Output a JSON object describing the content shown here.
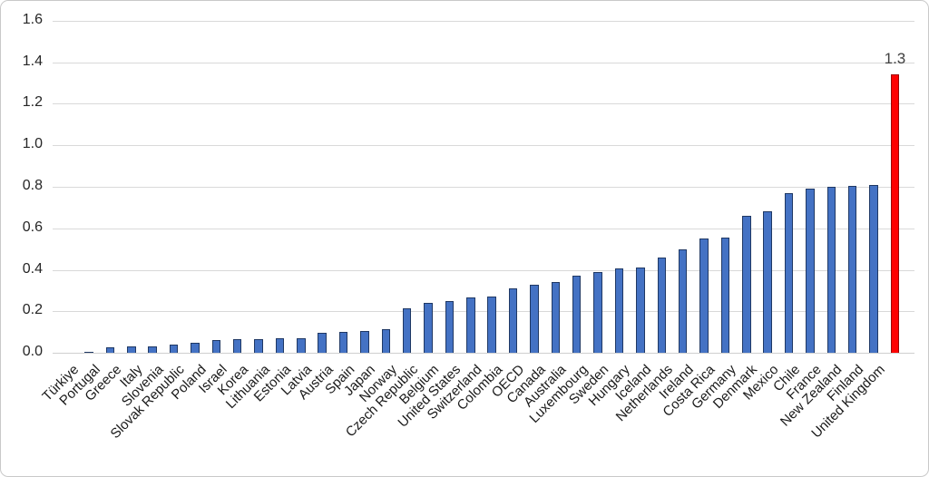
{
  "chart": {
    "colors": {
      "bar_fill": "#4472C4",
      "bar_border": "#1F3864",
      "highlight_fill": "#FE0000",
      "highlight_border": "#9B0000",
      "gridline": "#D9D9D9",
      "axis_text": "#262626"
    }
  },
  "chart_data": {
    "type": "bar",
    "title": "",
    "xlabel": "",
    "ylabel": "",
    "ylim": [
      0,
      1.6
    ],
    "y_tick_step": 0.2,
    "y_tick_labels": [
      "0.0",
      "0.2",
      "0.4",
      "0.6",
      "0.8",
      "1.0",
      "1.2",
      "1.4",
      "1.6"
    ],
    "grid": "horizontal",
    "legend": "none",
    "categories": [
      "Türkiye",
      "Portugal",
      "Greece",
      "Italy",
      "Slovenia",
      "Slovak Republic",
      "Poland",
      "Israel",
      "Korea",
      "Lithuania",
      "Estonia",
      "Latvia",
      "Austria",
      "Spain",
      "Japan",
      "Norway",
      "Czech Republic",
      "Belgium",
      "United States",
      "Switzerland",
      "Colombia",
      "OECD",
      "Canada",
      "Australia",
      "Luxembourg",
      "Sweden",
      "Hungary",
      "Iceland",
      "Netherlands",
      "Ireland",
      "Costa Rica",
      "Germany",
      "Denmark",
      "Mexico",
      "Chile",
      "France",
      "New Zealand",
      "Finland",
      "United Kingdom"
    ],
    "values": [
      0.005,
      0.025,
      0.03,
      0.03,
      0.04,
      0.05,
      0.06,
      0.065,
      0.065,
      0.07,
      0.07,
      0.095,
      0.1,
      0.105,
      0.115,
      0.215,
      0.24,
      0.25,
      0.265,
      0.27,
      0.31,
      0.33,
      0.34,
      0.37,
      0.39,
      0.405,
      0.41,
      0.46,
      0.5,
      0.55,
      0.555,
      0.66,
      0.68,
      0.77,
      0.79,
      0.8,
      0.805,
      0.81,
      1.34
    ],
    "highlight_index": 38,
    "data_label": {
      "index": 38,
      "text": "1.3"
    }
  }
}
